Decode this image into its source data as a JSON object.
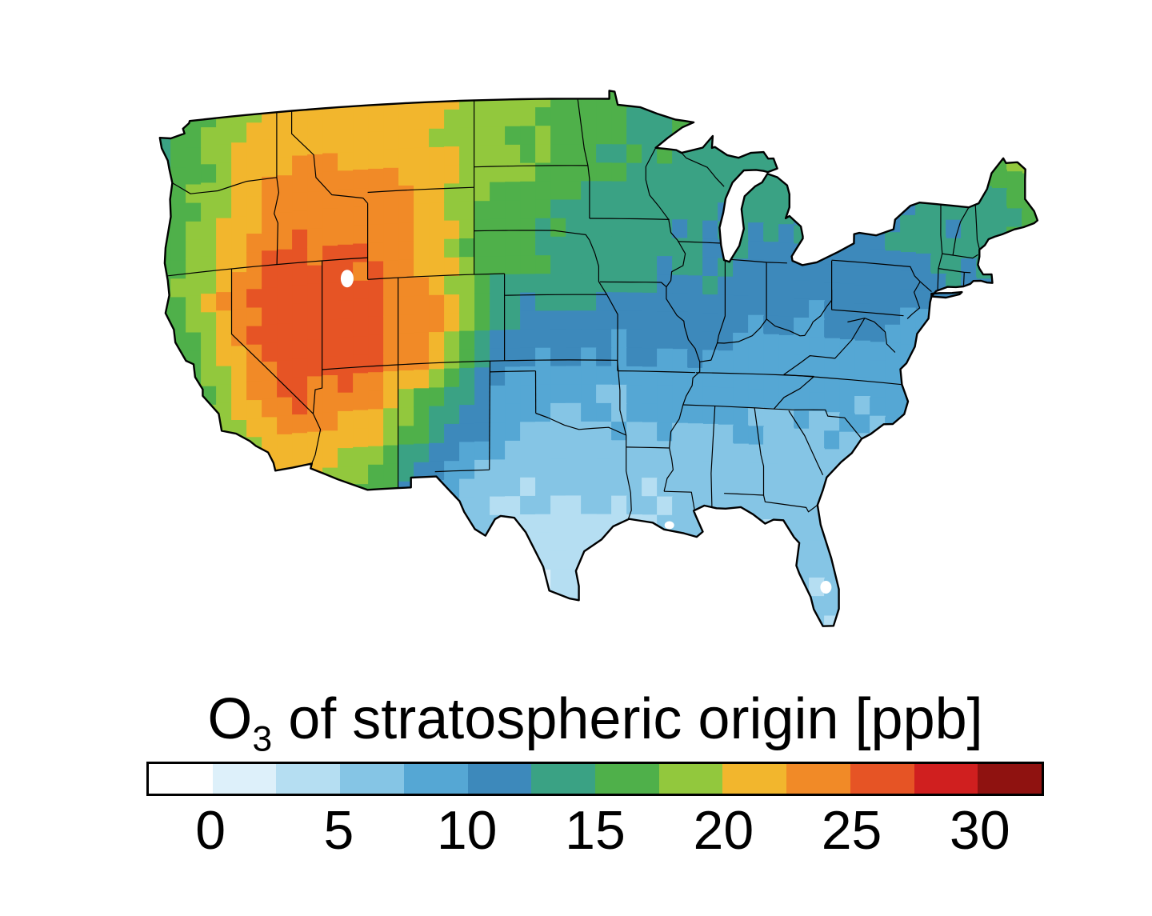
{
  "figure": {
    "title": {
      "prefix": "O",
      "subscript": "3",
      "suffix": " of stratospheric origin [ppb]"
    }
  },
  "chart_data": {
    "type": "heatmap",
    "title": "O3 of stratospheric origin [ppb]",
    "variable": "Ozone of stratospheric origin",
    "units": "ppb",
    "region": "Contiguous United States",
    "colorbar": {
      "orientation": "horizontal",
      "tick_labels": [
        "0",
        "5",
        "10",
        "15",
        "20",
        "25",
        "30"
      ],
      "tick_values": [
        0,
        5,
        10,
        15,
        20,
        25,
        30
      ],
      "bin_width_ppb": 2.5,
      "bin_edges": [
        -2.5,
        0,
        2.5,
        5,
        7.5,
        10,
        12.5,
        15,
        17.5,
        20,
        22.5,
        25,
        27.5,
        30,
        32.5
      ],
      "colors": [
        "#ffffff",
        "#ddf0fa",
        "#b5def2",
        "#85c5e5",
        "#55a7d4",
        "#3d89bb",
        "#3aa284",
        "#4fb04a",
        "#92c83d",
        "#f2b62d",
        "#f18a27",
        "#e65425",
        "#d01f1f",
        "#8f1210"
      ]
    },
    "grid": {
      "lon_centers_start": -124,
      "lon_step_deg": 2,
      "lat_centers_start": 49.1,
      "lat_step_deg": -1.7,
      "cols": 30,
      "rows": 15,
      "values_ppb": [
        [
          15,
          17,
          19,
          20,
          21,
          21,
          22,
          21,
          21,
          20,
          19,
          18,
          18,
          17,
          16,
          16,
          15,
          15,
          15,
          15,
          14,
          14,
          14,
          14,
          14,
          14,
          15,
          18,
          18,
          17
        ],
        [
          15,
          17,
          20,
          21,
          22,
          22,
          22,
          22,
          21,
          20,
          19,
          18,
          17,
          17,
          16,
          15,
          15,
          15,
          15,
          14,
          14,
          14,
          13,
          13,
          13,
          14,
          14,
          17,
          18,
          17
        ],
        [
          15,
          18,
          20,
          22,
          23,
          23,
          23,
          23,
          22,
          20,
          19,
          18,
          17,
          16,
          15,
          15,
          14,
          14,
          14,
          14,
          13,
          13,
          13,
          13,
          13,
          13,
          14,
          15,
          16,
          16
        ],
        [
          16,
          18,
          21,
          23,
          24,
          24,
          24,
          24,
          22,
          20,
          18,
          17,
          16,
          15,
          14,
          14,
          14,
          13,
          13,
          13,
          13,
          12,
          12,
          12,
          12,
          13,
          13,
          14,
          15,
          15
        ],
        [
          17,
          19,
          22,
          25,
          26,
          25,
          25,
          24,
          23,
          20,
          17,
          16,
          15,
          14,
          14,
          13,
          13,
          13,
          12,
          12,
          12,
          12,
          11,
          12,
          12,
          12,
          13,
          13,
          14,
          14
        ],
        [
          16,
          19,
          23,
          26,
          27,
          26,
          26,
          25,
          24,
          21,
          17,
          15,
          14,
          13,
          13,
          13,
          12,
          12,
          12,
          11,
          11,
          11,
          11,
          11,
          11,
          11,
          12,
          12,
          13,
          13
        ],
        [
          16,
          18,
          22,
          27,
          28,
          27,
          27,
          26,
          24,
          23,
          16,
          13,
          12,
          12,
          12,
          11,
          11,
          11,
          11,
          10,
          10,
          10,
          10,
          10,
          10,
          10,
          11,
          11,
          12,
          12
        ],
        [
          16,
          17,
          20,
          25,
          27,
          26,
          26,
          25,
          23,
          20,
          14,
          11,
          10,
          10,
          10,
          10,
          10,
          10,
          10,
          9,
          9,
          9,
          9,
          9,
          10,
          10,
          10,
          10,
          11,
          11
        ],
        [
          15,
          16,
          19,
          23,
          25,
          24,
          23,
          22,
          19,
          16,
          12,
          9,
          9,
          8,
          8,
          8,
          8,
          9,
          9,
          9,
          8,
          8,
          8,
          8,
          9,
          9,
          9,
          9,
          10,
          10
        ],
        [
          15,
          16,
          18,
          21,
          22,
          22,
          21,
          19,
          16,
          13,
          10,
          8,
          7,
          7,
          7,
          7,
          7,
          7,
          7,
          7,
          7,
          7,
          7,
          8,
          8,
          8,
          8,
          8,
          9,
          9
        ],
        [
          14,
          15,
          17,
          20,
          21,
          20,
          19,
          17,
          13,
          10,
          8,
          6,
          6,
          5,
          6,
          6,
          6,
          6,
          6,
          6,
          6,
          6,
          7,
          7,
          7,
          7,
          7,
          7,
          8,
          8
        ],
        [
          14,
          15,
          16,
          18,
          19,
          19,
          17,
          14,
          10,
          8,
          6,
          5,
          5,
          4,
          5,
          5,
          5,
          6,
          6,
          6,
          6,
          6,
          6,
          6,
          7,
          7,
          7,
          7,
          7,
          7
        ],
        [
          13,
          14,
          15,
          17,
          18,
          17,
          15,
          12,
          9,
          7,
          5,
          4,
          4,
          4,
          4,
          5,
          5,
          5,
          5,
          5,
          5,
          6,
          6,
          6,
          6,
          6,
          6,
          6,
          6,
          6
        ],
        [
          13,
          14,
          15,
          16,
          16,
          16,
          14,
          11,
          8,
          6,
          4,
          3,
          3,
          3,
          4,
          4,
          4,
          5,
          5,
          5,
          5,
          5,
          5,
          6,
          6,
          6,
          6,
          6,
          6,
          6
        ],
        [
          12,
          13,
          14,
          15,
          15,
          15,
          13,
          10,
          7,
          5,
          4,
          3,
          3,
          3,
          3,
          4,
          4,
          4,
          5,
          5,
          5,
          5,
          5,
          5,
          5,
          6,
          6,
          6,
          6,
          6
        ]
      ]
    }
  }
}
